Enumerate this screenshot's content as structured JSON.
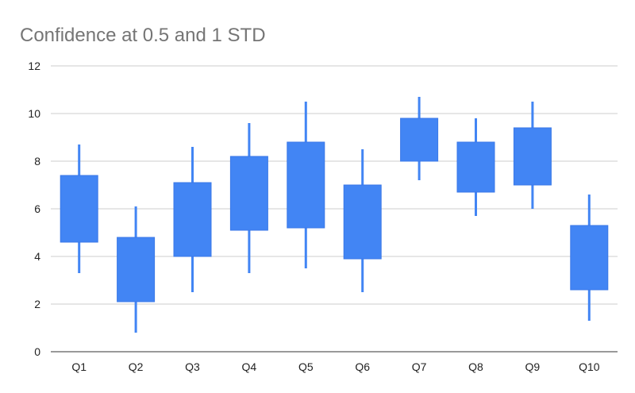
{
  "chart_data": {
    "type": "candlestick",
    "title": "Confidence at 0.5 and 1 STD",
    "xlabel": "",
    "ylabel": "",
    "ylim": [
      0,
      12
    ],
    "yticks": [
      0,
      2,
      4,
      6,
      8,
      10,
      12
    ],
    "grid": true,
    "legend": "none",
    "color": "#4285f4",
    "categories": [
      "Q1",
      "Q2",
      "Q3",
      "Q4",
      "Q5",
      "Q6",
      "Q7",
      "Q8",
      "Q9",
      "Q10"
    ],
    "low": [
      3.3,
      0.8,
      2.5,
      3.3,
      3.5,
      2.5,
      7.2,
      5.7,
      6.0,
      1.3
    ],
    "box_low": [
      4.6,
      2.1,
      4.0,
      5.1,
      5.2,
      3.9,
      8.0,
      6.7,
      7.0,
      2.6
    ],
    "box_high": [
      7.4,
      4.8,
      7.1,
      8.2,
      8.8,
      7.0,
      9.8,
      8.8,
      9.4,
      5.3
    ],
    "high": [
      8.7,
      6.1,
      8.6,
      9.6,
      10.5,
      8.5,
      10.7,
      9.8,
      10.5,
      6.6
    ]
  }
}
